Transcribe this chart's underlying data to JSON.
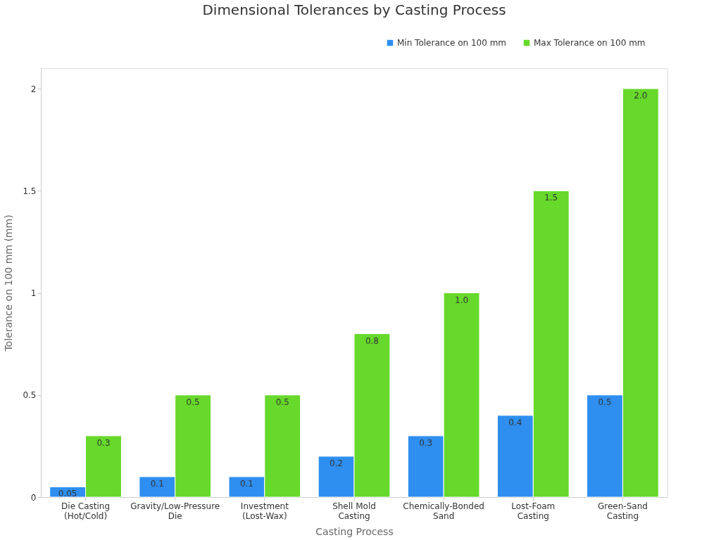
{
  "chart_data": {
    "type": "bar",
    "title": "Dimensional Tolerances by Casting Process",
    "xlabel": "Casting Process",
    "ylabel": "Tolerance on 100 mm (mm)",
    "categories": [
      "Die Casting\n(Hot/Cold)",
      "Gravity/Low-Pressure\nDie",
      "Investment\n(Lost-Wax)",
      "Shell Mold\nCasting",
      "Chemically-Bonded\nSand",
      "Lost-Foam\nCasting",
      "Green-Sand\nCasting"
    ],
    "series": [
      {
        "name": "Min Tolerance on 100 mm",
        "color": "#2e8ff0",
        "values": [
          0.05,
          0.1,
          0.1,
          0.2,
          0.3,
          0.4,
          0.5
        ],
        "value_labels": [
          "0.05",
          "0.1",
          "0.1",
          "0.2",
          "0.3",
          "0.4",
          "0.5"
        ]
      },
      {
        "name": "Max Tolerance on 100 mm",
        "color": "#66d92a",
        "values": [
          0.3,
          0.5,
          0.5,
          0.8,
          1.0,
          1.5,
          2.0
        ],
        "value_labels": [
          "0.3",
          "0.5",
          "0.5",
          "0.8",
          "1.0",
          "1.5",
          "2.0"
        ]
      }
    ],
    "ylim": [
      0,
      2.1
    ],
    "yticks": [
      0,
      0.5,
      1,
      1.5,
      2
    ],
    "grid": false,
    "legend": "top right"
  }
}
